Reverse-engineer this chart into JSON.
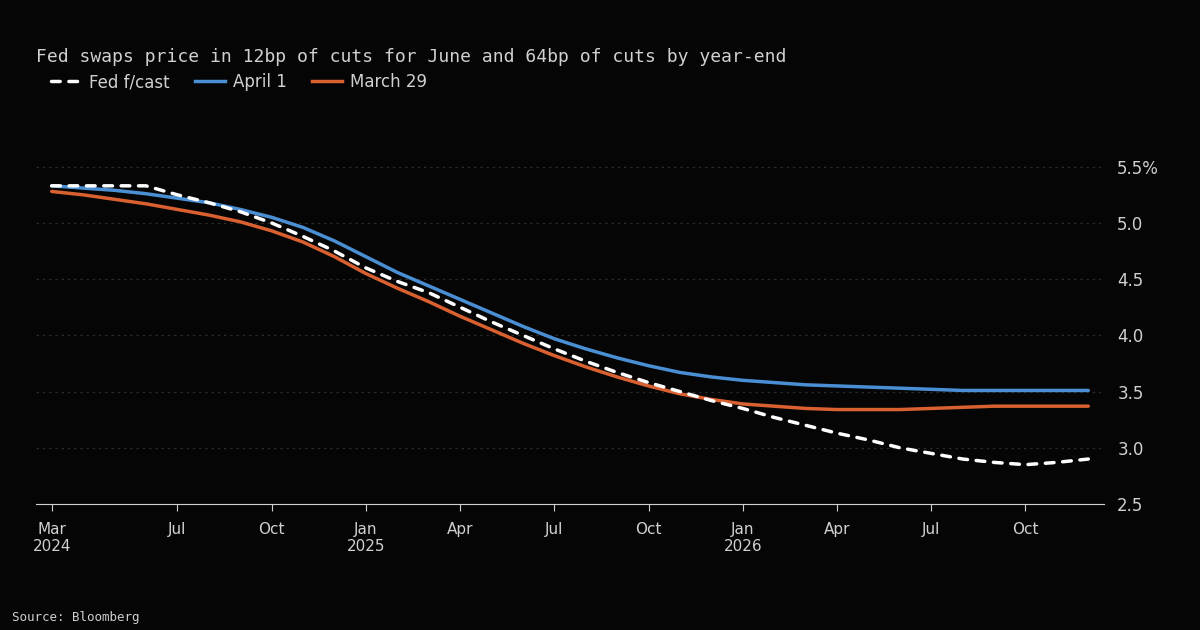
{
  "title": "Fed swaps price in 12bp of cuts for June and 64bp of cuts by year-end",
  "source": "Source: Bloomberg",
  "background_color": "#050505",
  "text_color": "#d0d0d0",
  "grid_color": "#2a2a2a",
  "ylim": [
    2.5,
    5.75
  ],
  "yticks": [
    2.5,
    3.0,
    3.5,
    4.0,
    4.5,
    5.0,
    5.5
  ],
  "ytick_labels": [
    "2.5",
    "3.0",
    "3.5",
    "4.0",
    "4.5",
    "5.0",
    "5.5%"
  ],
  "legend": [
    {
      "label": "Fed f/cast",
      "color": "#ffffff",
      "linestyle": "dashed",
      "linewidth": 2.5
    },
    {
      "label": "April 1",
      "color": "#4a8fd4",
      "linestyle": "solid",
      "linewidth": 2.5
    },
    {
      "label": "March 29",
      "color": "#d96030",
      "linestyle": "solid",
      "linewidth": 2.5
    }
  ],
  "x_tick_positions": [
    0,
    4,
    7,
    10,
    13,
    16,
    19,
    22,
    25,
    28,
    31
  ],
  "x_tick_labels": [
    "Mar\n2024",
    "Jul",
    "Oct",
    "Jan\n2025",
    "Apr",
    "Jul",
    "Oct",
    "Jan\n2026",
    "Apr",
    "Jul",
    "Oct"
  ],
  "fed_forecast": {
    "x": [
      0,
      1,
      2,
      3,
      4,
      5,
      6,
      7,
      8,
      9,
      10,
      11,
      12,
      13,
      14,
      15,
      16,
      17,
      18,
      19,
      20,
      21,
      22,
      23,
      24,
      25,
      26,
      27,
      28,
      29,
      30,
      31,
      32,
      33
    ],
    "y": [
      5.33,
      5.33,
      5.33,
      5.33,
      5.25,
      5.18,
      5.1,
      5.0,
      4.88,
      4.75,
      4.6,
      4.48,
      4.38,
      4.25,
      4.12,
      4.0,
      3.88,
      3.77,
      3.67,
      3.58,
      3.5,
      3.42,
      3.35,
      3.27,
      3.2,
      3.13,
      3.07,
      3.0,
      2.95,
      2.9,
      2.87,
      2.85,
      2.87,
      2.9
    ]
  },
  "april1": {
    "x": [
      0,
      1,
      2,
      3,
      4,
      5,
      6,
      7,
      8,
      9,
      10,
      11,
      12,
      13,
      14,
      15,
      16,
      17,
      18,
      19,
      20,
      21,
      22,
      23,
      24,
      25,
      26,
      27,
      28,
      29,
      30,
      31,
      32,
      33
    ],
    "y": [
      5.33,
      5.31,
      5.29,
      5.26,
      5.22,
      5.18,
      5.12,
      5.05,
      4.96,
      4.84,
      4.7,
      4.56,
      4.44,
      4.32,
      4.2,
      4.08,
      3.97,
      3.88,
      3.8,
      3.73,
      3.67,
      3.63,
      3.6,
      3.58,
      3.56,
      3.55,
      3.54,
      3.53,
      3.52,
      3.51,
      3.51,
      3.51,
      3.51,
      3.51
    ]
  },
  "march29": {
    "x": [
      0,
      1,
      2,
      3,
      4,
      5,
      6,
      7,
      8,
      9,
      10,
      11,
      12,
      13,
      14,
      15,
      16,
      17,
      18,
      19,
      20,
      21,
      22,
      23,
      24,
      25,
      26,
      27,
      28,
      29,
      30,
      31,
      32,
      33
    ],
    "y": [
      5.28,
      5.25,
      5.21,
      5.17,
      5.12,
      5.07,
      5.01,
      4.93,
      4.83,
      4.7,
      4.55,
      4.42,
      4.3,
      4.17,
      4.05,
      3.93,
      3.82,
      3.72,
      3.63,
      3.55,
      3.48,
      3.43,
      3.39,
      3.37,
      3.35,
      3.34,
      3.34,
      3.34,
      3.35,
      3.36,
      3.37,
      3.37,
      3.37,
      3.37
    ]
  }
}
